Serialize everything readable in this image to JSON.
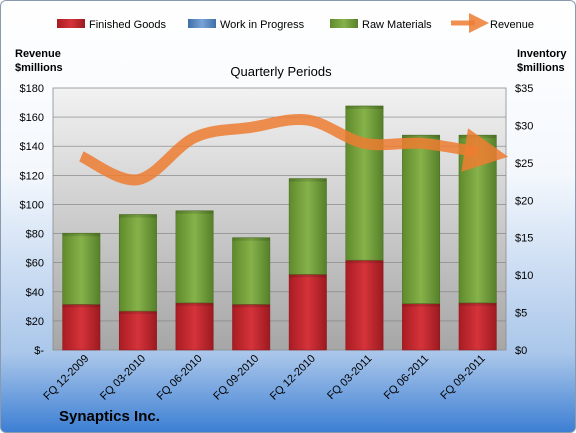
{
  "company": "Synaptics Inc.",
  "chart_data": {
    "type": "bar",
    "title": "Quarterly Periods",
    "categories": [
      "FQ 12-2009",
      "FQ 03-2010",
      "FQ 06-2010",
      "FQ 09-2010",
      "FQ 12-2010",
      "FQ 03-2011",
      "FQ 06-2011",
      "FQ 09-2011"
    ],
    "stacked": true,
    "series": [
      {
        "name": "Finished Goods",
        "axis": "right",
        "color": "#c0272d",
        "values": [
          6.1,
          5.2,
          6.3,
          6.1,
          10.1,
          12.0,
          6.2,
          6.3
        ]
      },
      {
        "name": "Work in Progress",
        "axis": "right",
        "color": "#4f81bd",
        "values": [
          0,
          0,
          0,
          0,
          0,
          0,
          0,
          0
        ]
      },
      {
        "name": "Raw Materials",
        "axis": "right",
        "color": "#6f9a3a",
        "values": [
          9.5,
          12.9,
          12.3,
          8.9,
          12.8,
          20.6,
          22.5,
          22.4
        ]
      },
      {
        "name": "Revenue",
        "axis": "left",
        "type": "line",
        "color": "#ed7d31",
        "values": [
          133,
          117,
          146,
          153,
          158,
          142,
          142,
          136
        ]
      }
    ],
    "y_left": {
      "label": "Revenue $millions",
      "min": 0,
      "max": 180,
      "step": 20,
      "tick_labels": [
        "$-",
        "$20",
        "$40",
        "$60",
        "$80",
        "$100",
        "$120",
        "$140",
        "$160",
        "$180"
      ]
    },
    "y_right": {
      "label": "Inventory $millions",
      "min": 0,
      "max": 35,
      "step": 5,
      "tick_labels": [
        "$0",
        "$5",
        "$10",
        "$15",
        "$20",
        "$25",
        "$30",
        "$35"
      ]
    },
    "grid": true,
    "legend_position": "top"
  }
}
